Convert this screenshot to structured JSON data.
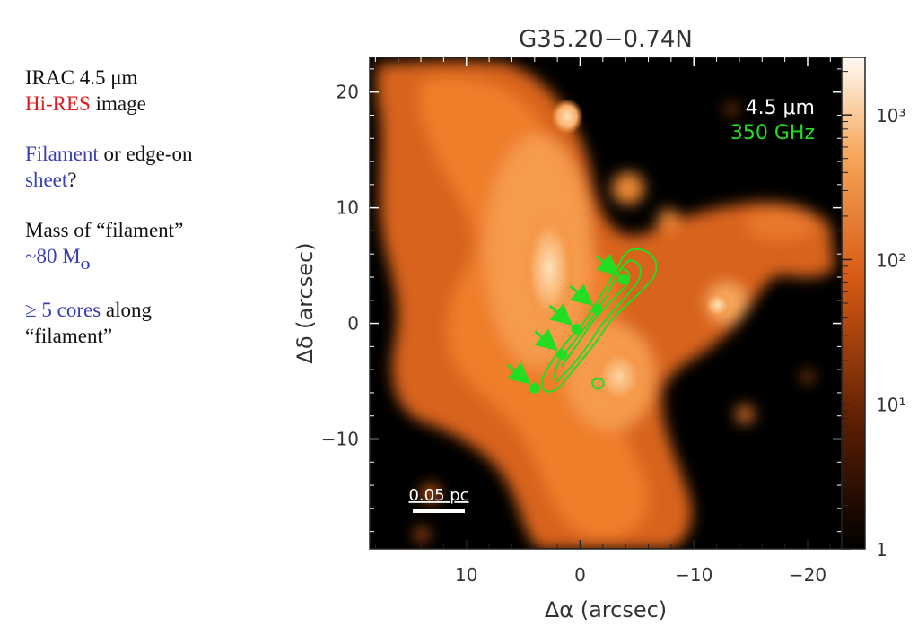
{
  "notes": {
    "line1": "IRAC 4.5 μm",
    "line2_red": "Hi-RES",
    "line2_rest": " image",
    "q_word1": "Filament",
    "q_mid": " or edge-on",
    "q_word2": "sheet",
    "q_end": "?",
    "mass_label": "Mass of “filament”",
    "mass_value": "~80 M",
    "mass_sub": "O",
    "cores_blue": "≥ 5 cores",
    "cores_rest": " along",
    "cores_line2": "“filament”"
  },
  "figure": {
    "title": "G35.20−0.74N",
    "legend": [
      "4.5 μm",
      "350 GHz"
    ],
    "scalebar_label": "0.05 pc",
    "colorbar_ticks": [
      "10³",
      "10²",
      "10¹",
      "1"
    ]
  },
  "colors": {
    "background": "#000000",
    "emission": "#f0882e",
    "contour": "#22dd22",
    "text_blue": "#3b3fb5",
    "text_red": "#e01b1b"
  },
  "chart_data": {
    "type": "heatmap",
    "title": "G35.20−0.74N",
    "xlabel": "Δα (arcsec)",
    "ylabel": "Δδ (arcsec)",
    "xlim": [
      18.5,
      -23
    ],
    "ylim": [
      -19.5,
      23
    ],
    "xticks": [
      10,
      0,
      -10,
      -20
    ],
    "yticks": [
      20,
      10,
      0,
      -10
    ],
    "colorbar": {
      "scale": "log",
      "ticks": [
        1000,
        100,
        10,
        1
      ],
      "range": [
        1,
        2500
      ]
    },
    "cores": [
      {
        "x": -3.8,
        "y": 3.8
      },
      {
        "x": -1.5,
        "y": 1.2
      },
      {
        "x": 0.3,
        "y": -0.5
      },
      {
        "x": 1.6,
        "y": -2.7
      },
      {
        "x": 4.0,
        "y": -5.6
      }
    ]
  }
}
